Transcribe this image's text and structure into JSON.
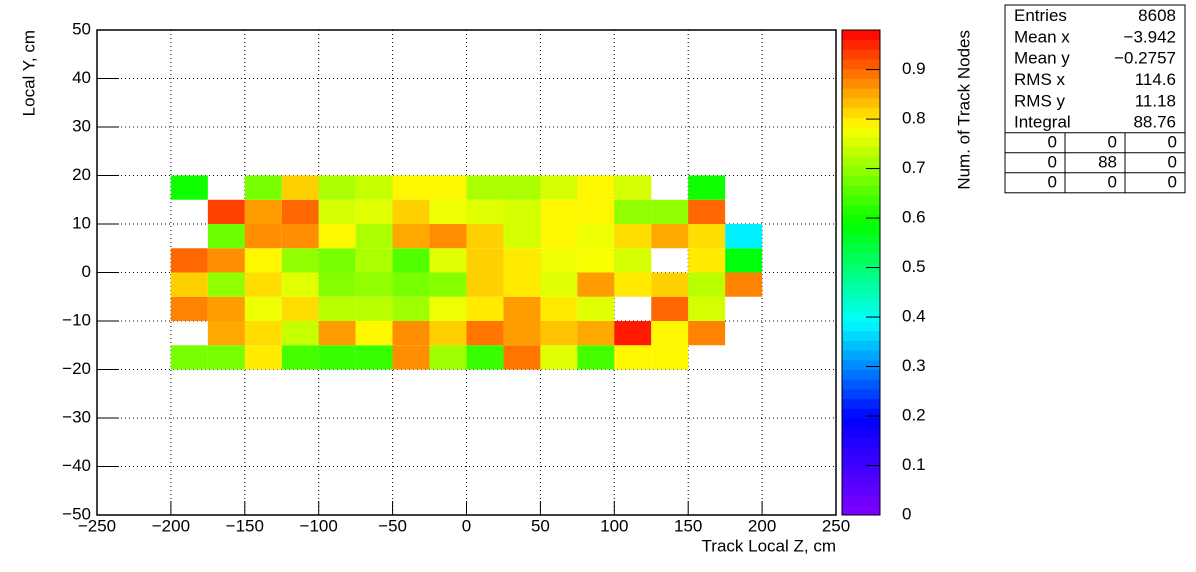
{
  "chart_data": {
    "type": "heatmap",
    "x_label": "Track Local Z, cm",
    "y_label": "Local Y, cm",
    "z_label": "Num. of Track Nodes",
    "xbins": [
      -200,
      -175,
      -150,
      -125,
      -100,
      -75,
      -50,
      -25,
      0,
      25,
      50,
      75,
      100,
      125,
      150,
      175,
      200
    ],
    "ybins": [
      -20,
      -15,
      -10,
      -5,
      0,
      5,
      10,
      15,
      20
    ],
    "z": [
      [
        0.68,
        0.68,
        0.8,
        0.64,
        0.63,
        0.63,
        0.87,
        0.71,
        0.63,
        0.89,
        0.76,
        0.64,
        0.79,
        0.79,
        null,
        null
      ],
      [
        null,
        0.85,
        0.81,
        0.74,
        0.86,
        0.79,
        0.87,
        0.82,
        0.89,
        0.86,
        0.83,
        0.85,
        0.96,
        0.79,
        0.88,
        null
      ],
      [
        0.88,
        0.86,
        0.77,
        0.81,
        0.73,
        0.73,
        0.71,
        0.77,
        0.8,
        0.86,
        0.8,
        0.76,
        null,
        0.9,
        0.75,
        null
      ],
      [
        0.82,
        0.7,
        0.81,
        0.76,
        0.69,
        0.7,
        0.68,
        0.69,
        0.82,
        0.8,
        0.76,
        0.86,
        0.8,
        0.82,
        0.73,
        0.88
      ],
      [
        0.9,
        0.87,
        0.79,
        0.7,
        0.68,
        0.72,
        0.65,
        0.76,
        0.82,
        0.8,
        0.77,
        0.78,
        0.75,
        null,
        0.8,
        0.58
      ],
      [
        null,
        0.67,
        0.87,
        0.87,
        0.79,
        0.72,
        0.85,
        0.87,
        0.82,
        0.75,
        0.79,
        0.77,
        0.81,
        0.85,
        0.81,
        0.38
      ],
      [
        null,
        0.93,
        0.86,
        0.9,
        0.75,
        0.76,
        0.82,
        0.77,
        0.76,
        0.75,
        0.79,
        0.79,
        0.7,
        0.7,
        0.9,
        null
      ],
      [
        0.6,
        null,
        0.68,
        0.82,
        0.72,
        0.74,
        0.79,
        0.79,
        0.72,
        0.72,
        0.75,
        0.79,
        0.75,
        null,
        0.6,
        null
      ]
    ],
    "xlim": [
      -250,
      250
    ],
    "ylim": [
      -50,
      50
    ],
    "zlim": [
      0,
      0.98
    ],
    "xticks": [
      {
        "value": -250,
        "label": "−250"
      },
      {
        "value": -200,
        "label": "−200"
      },
      {
        "value": -150,
        "label": "−150"
      },
      {
        "value": -100,
        "label": "−100"
      },
      {
        "value": -50,
        "label": "−50"
      },
      0,
      50,
      100,
      150,
      200,
      250
    ],
    "yticks": [
      {
        "value": -50,
        "label": "−50"
      },
      {
        "value": -40,
        "label": "−40"
      },
      {
        "value": -30,
        "label": "−30"
      },
      {
        "value": -20,
        "label": "−20"
      },
      {
        "value": -10,
        "label": "−10"
      },
      0,
      10,
      20,
      30,
      40,
      50
    ],
    "zticks": [
      0,
      0.1,
      0.2,
      0.3,
      0.4,
      0.5,
      0.6,
      0.7,
      0.8,
      0.9
    ],
    "palette": [
      "#8000ff",
      "#0000ff",
      "#00ffff",
      "#00ff00",
      "#ffff00",
      "#ff0000"
    ],
    "grid": true,
    "stats": [
      {
        "name": "Entries",
        "value": 8608
      },
      {
        "name": "Mean x",
        "value": -3.942,
        "value_label": "−3.942"
      },
      {
        "name": "Mean y",
        "value": -0.2757,
        "value_label": "−0.2757"
      },
      {
        "name": "RMS x",
        "value": 114.6
      },
      {
        "name": "RMS y",
        "value": 11.18
      },
      {
        "name": "Integral",
        "value": 88.76
      }
    ],
    "overflow": [
      [
        0,
        0,
        0
      ],
      [
        0,
        88,
        0
      ],
      [
        0,
        0,
        0
      ]
    ]
  }
}
